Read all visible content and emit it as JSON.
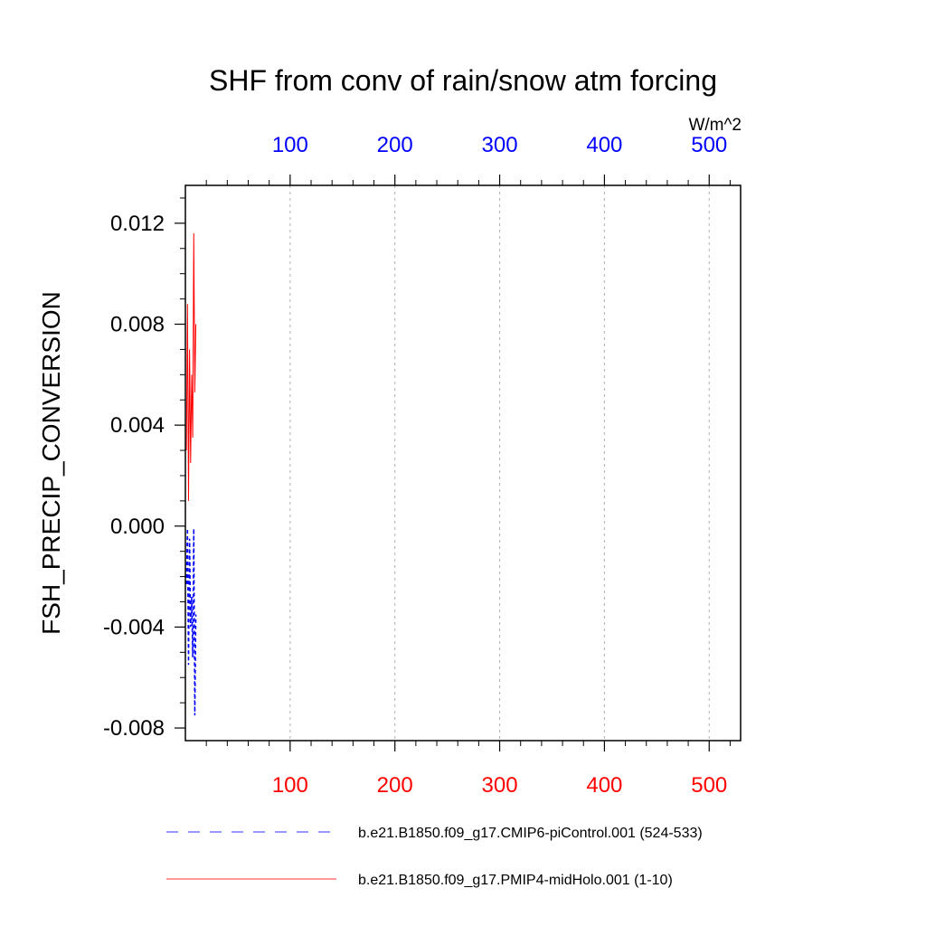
{
  "chart_data": {
    "type": "line",
    "title": "SHF from conv of rain/snow atm forcing",
    "xlabel": "",
    "ylabel": "FSH_PRECIP_CONVERSION",
    "units": "W/m^2",
    "xlim": [
      0,
      530
    ],
    "ylim": [
      -0.0085,
      0.0135
    ],
    "x_ticks": [
      100,
      200,
      300,
      400,
      500
    ],
    "x_tick_labels": [
      "100",
      "200",
      "300",
      "400",
      "500"
    ],
    "y_ticks": [
      -0.008,
      -0.004,
      0.0,
      0.004,
      0.008,
      0.012
    ],
    "y_tick_labels": [
      "-0.008",
      "-0.004",
      "0.000",
      "0.004",
      "0.008",
      "0.012"
    ],
    "grid": "vertical dashed at x ticks",
    "legend_position": "bottom",
    "series": [
      {
        "name": "b.e21.B1850.f09_g17.CMIP6-piControl.001 (524-533)",
        "color": "#0000ff",
        "dash": "dashed",
        "axis": "top",
        "x": [
          1,
          2,
          3,
          4,
          5,
          6,
          7,
          8,
          9,
          10
        ],
        "y": [
          -0.0023,
          -0.0001,
          -0.0055,
          -0.0005,
          -0.004,
          -0.0028,
          -0.0052,
          -0.0001,
          -0.0075,
          -0.0035
        ]
      },
      {
        "name": "b.e21.B1850.f09_g17.PMIP4-midHolo.001 (1-10)",
        "color": "#ff0000",
        "dash": "solid",
        "axis": "bottom",
        "x": [
          1,
          2,
          3,
          4,
          5,
          6,
          7,
          8,
          9,
          10
        ],
        "y": [
          0.003,
          0.0088,
          0.001,
          0.007,
          0.0025,
          0.006,
          0.0035,
          0.0116,
          0.0053,
          0.008
        ]
      }
    ],
    "axis_label_colors": {
      "top": "#0000ff",
      "bottom": "#ff0000",
      "left": "#000000"
    }
  }
}
